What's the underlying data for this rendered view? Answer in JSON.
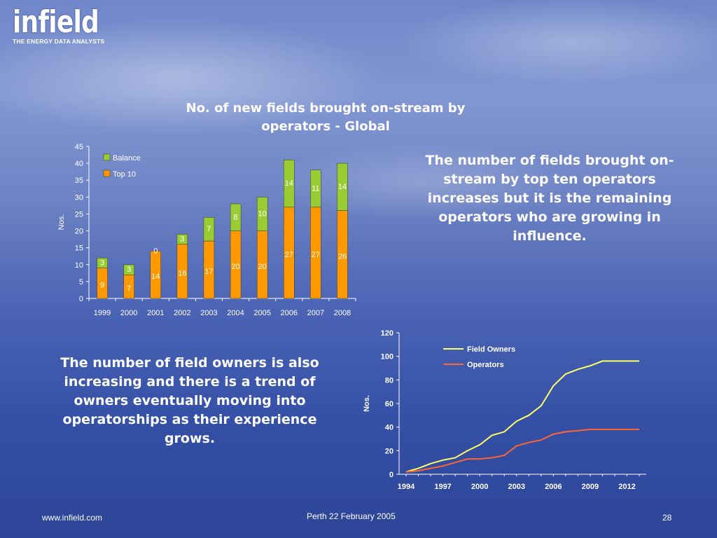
{
  "logo": {
    "word": "infield",
    "tagline": "THE ENERGY DATA ANALYSTS"
  },
  "footer": {
    "url": "www.infield.com",
    "event": "Perth 22 February 2005",
    "page": "28"
  },
  "callouts": {
    "top": "The number of fields brought on-stream by top ten operators increases but it is the remaining operators who are growing in influence.",
    "bottom": "The number of field owners is also increasing and there is a trend of owners eventually moving into operatorships as their experience grows."
  },
  "colors": {
    "balance": "#99cc33",
    "top10": "#ff9900",
    "field_owners": "#ffff66",
    "operators": "#ff6633"
  },
  "chart_data": [
    {
      "type": "bar",
      "stacked": true,
      "title": "No. of new fields brought on-stream by operators - Global",
      "xlabel": "",
      "ylabel": "Nos.",
      "ylim": [
        0,
        45
      ],
      "yticks": [
        0,
        5,
        10,
        15,
        20,
        25,
        30,
        35,
        40,
        45
      ],
      "categories": [
        "1999",
        "2000",
        "2001",
        "2002",
        "2003",
        "2004",
        "2005",
        "2006",
        "2007",
        "2008"
      ],
      "legend_position": "top-left",
      "series": [
        {
          "name": "Top 10",
          "values": [
            9,
            7,
            14,
            16,
            17,
            20,
            20,
            27,
            27,
            26
          ]
        },
        {
          "name": "Balance",
          "values": [
            3,
            3,
            0,
            3,
            7,
            8,
            10,
            14,
            11,
            14
          ]
        }
      ],
      "legend": [
        "Balance",
        "Top 10"
      ]
    },
    {
      "type": "line",
      "title": "",
      "xlabel": "",
      "ylabel": "Nos.",
      "ylim": [
        0,
        120
      ],
      "yticks": [
        0,
        20,
        40,
        60,
        80,
        100,
        120
      ],
      "xlim": [
        1994,
        2013
      ],
      "xticks": [
        "1994",
        "1997",
        "2000",
        "2003",
        "2006",
        "2009",
        "2012"
      ],
      "legend_position": "top-right",
      "series": [
        {
          "name": "Field Owners",
          "x": [
            1994,
            1995,
            1996,
            1997,
            1998,
            1999,
            2000,
            2001,
            2002,
            2003,
            2004,
            2005,
            2006,
            2007,
            2008,
            2009,
            2010,
            2011,
            2012,
            2013
          ],
          "values": [
            2,
            5,
            9,
            12,
            14,
            20,
            25,
            33,
            36,
            45,
            50,
            58,
            75,
            85,
            89,
            92,
            96,
            96,
            96,
            96
          ]
        },
        {
          "name": "Operators",
          "x": [
            1994,
            1995,
            1996,
            1997,
            1998,
            1999,
            2000,
            2001,
            2002,
            2003,
            2004,
            2005,
            2006,
            2007,
            2008,
            2009,
            2010,
            2011,
            2012,
            2013
          ],
          "values": [
            2,
            3,
            5,
            7,
            10,
            13,
            13,
            14,
            16,
            24,
            27,
            29,
            34,
            36,
            37,
            38,
            38,
            38,
            38,
            38
          ]
        }
      ]
    }
  ]
}
